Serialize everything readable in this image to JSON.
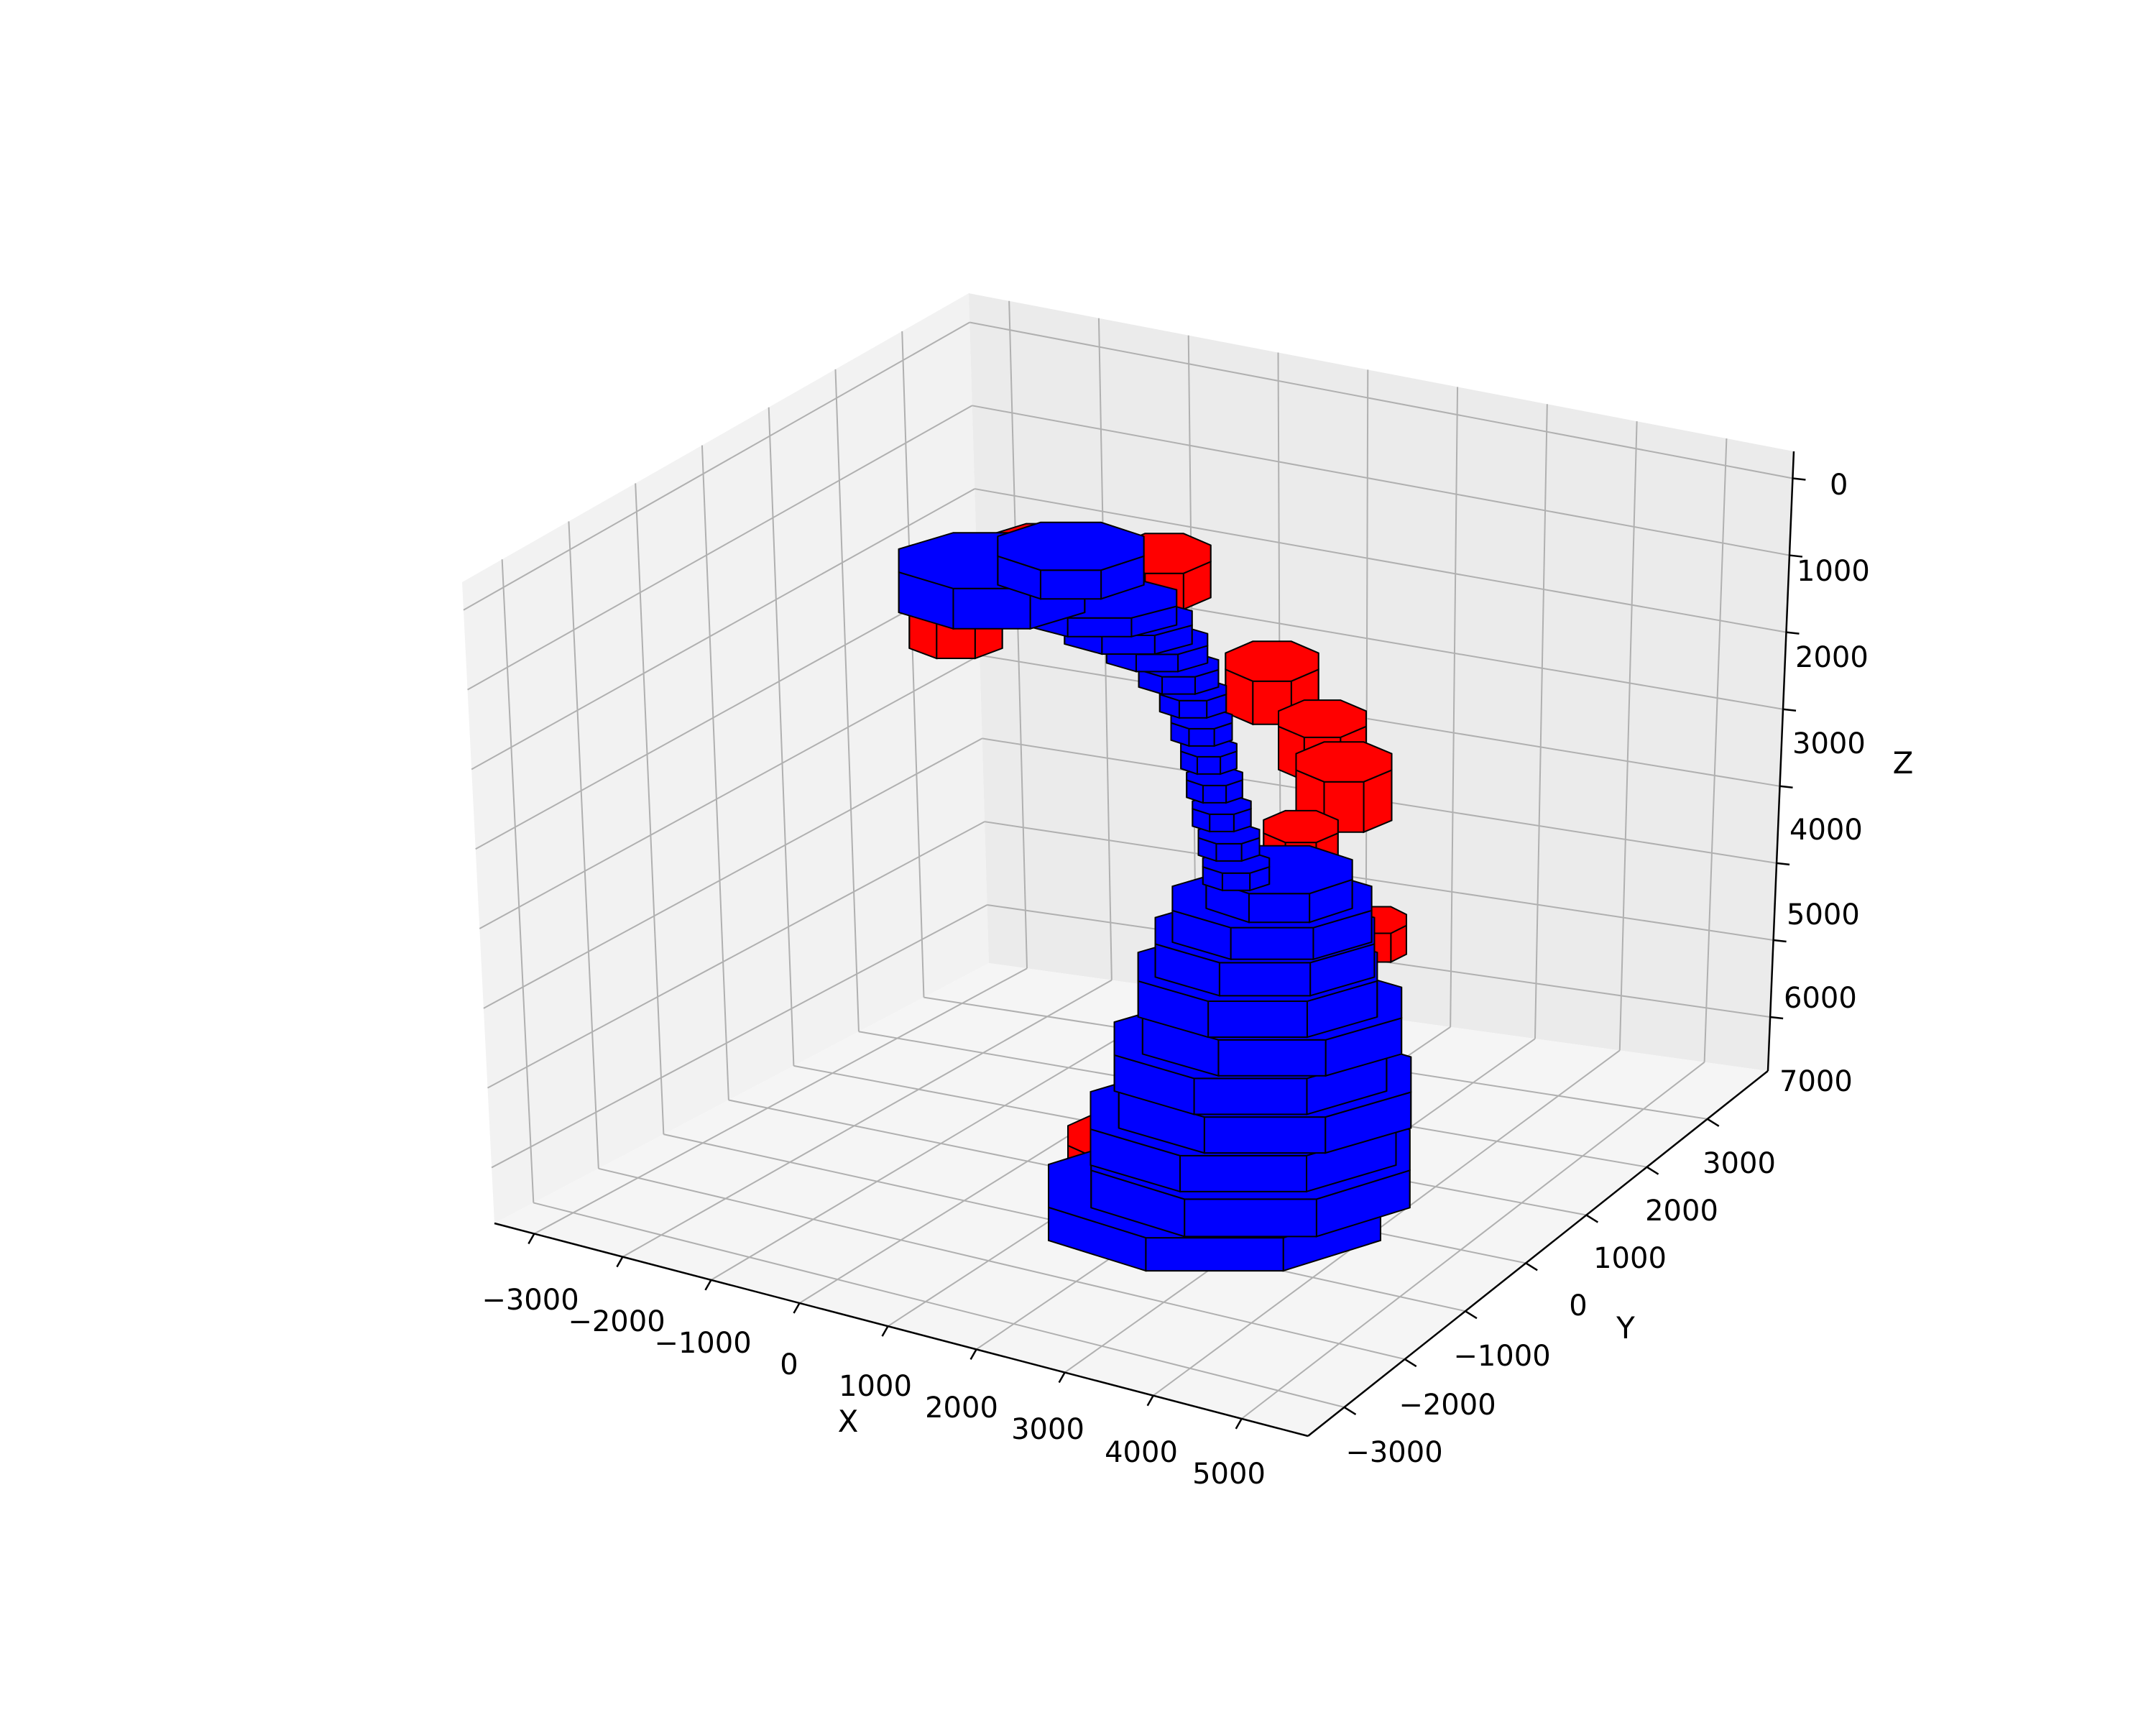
{
  "chart_data": {
    "type": "3d-voxel",
    "title": "",
    "axes": {
      "x": {
        "label": "X",
        "ticks": [
          "−3000",
          "−2000",
          "−1000",
          "0",
          "1000",
          "2000",
          "3000",
          "4000",
          "5000"
        ]
      },
      "y": {
        "label": "Y",
        "ticks": [
          "−3000",
          "−2000",
          "−1000",
          "0",
          "1000",
          "2000",
          "3000"
        ]
      },
      "z": {
        "label": "Z",
        "ticks": [
          "0",
          "1000",
          "2000",
          "3000",
          "4000",
          "5000",
          "6000",
          "7000"
        ],
        "inverted": true
      }
    },
    "grid": true,
    "series": [
      {
        "color": "#0000ff"
      },
      {
        "color": "#ff0000"
      }
    ]
  },
  "colors": {
    "blue": "#0000ff",
    "red": "#ff0000",
    "edge": "#000000",
    "pane_left": "#f2f2f2",
    "pane_back": "#ebebeb",
    "pane_floor": "#f5f5f5",
    "grid": "#b0b0b0"
  }
}
